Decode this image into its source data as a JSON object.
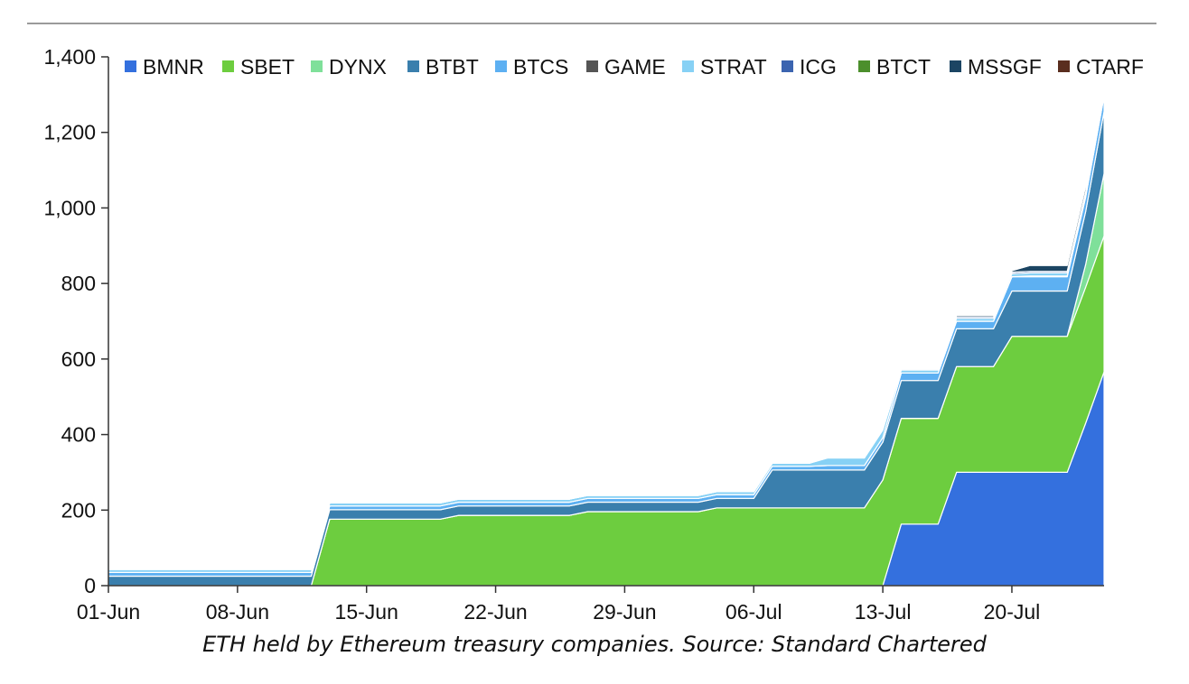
{
  "caption": "ETH held by Ethereum treasury companies. Source: Standard Chartered",
  "chart_data": {
    "type": "area",
    "stacked": true,
    "title": "",
    "xlabel": "",
    "ylabel": "",
    "ylim": [
      0,
      1400
    ],
    "yticks": [
      0,
      200,
      400,
      600,
      800,
      1000,
      1200,
      1400
    ],
    "ytick_labels": [
      "0",
      "200",
      "400",
      "600",
      "800",
      "1,000",
      "1,200",
      "1,400"
    ],
    "xlim": [
      "2025-06-01",
      "2025-07-25"
    ],
    "xticks": [
      "2025-06-01",
      "2025-06-08",
      "2025-06-15",
      "2025-06-22",
      "2025-06-29",
      "2025-07-06",
      "2025-07-13",
      "2025-07-20"
    ],
    "xtick_labels": [
      "01-Jun",
      "08-Jun",
      "15-Jun",
      "22-Jun",
      "29-Jun",
      "06-Jul",
      "13-Jul",
      "20-Jul"
    ],
    "grid": false,
    "legend_position": "top",
    "x": [
      "2025-06-01",
      "2025-06-12",
      "2025-06-13",
      "2025-06-19",
      "2025-06-20",
      "2025-06-26",
      "2025-06-27",
      "2025-07-03",
      "2025-07-04",
      "2025-07-06",
      "2025-07-07",
      "2025-07-09",
      "2025-07-10",
      "2025-07-12",
      "2025-07-13",
      "2025-07-14",
      "2025-07-15",
      "2025-07-16",
      "2025-07-17",
      "2025-07-18",
      "2025-07-19",
      "2025-07-20",
      "2025-07-21",
      "2025-07-22",
      "2025-07-23",
      "2025-07-24",
      "2025-07-25"
    ],
    "series": [
      {
        "name": "BMNR",
        "color": "#3470DE",
        "values": [
          0,
          0,
          0,
          0,
          0,
          0,
          0,
          0,
          0,
          0,
          0,
          0,
          0,
          0,
          0,
          163,
          163,
          163,
          300,
          300,
          300,
          300,
          300,
          300,
          300,
          430,
          566
        ]
      },
      {
        "name": "SBET",
        "color": "#6DCD3F",
        "values": [
          0,
          0,
          176,
          176,
          186,
          186,
          196,
          196,
          206,
          206,
          206,
          206,
          206,
          206,
          280,
          280,
          280,
          280,
          280,
          280,
          280,
          360,
          360,
          360,
          360,
          360,
          360
        ]
      },
      {
        "name": "DYNX",
        "color": "#7FE09A",
        "values": [
          0,
          0,
          0,
          0,
          0,
          0,
          0,
          0,
          0,
          0,
          0,
          0,
          0,
          0,
          0,
          0,
          0,
          0,
          0,
          0,
          0,
          0,
          0,
          0,
          0,
          60,
          165
        ]
      },
      {
        "name": "BTBT",
        "color": "#3A7FAD",
        "values": [
          25,
          25,
          25,
          25,
          25,
          25,
          25,
          25,
          25,
          25,
          100,
          100,
          100,
          100,
          100,
          100,
          100,
          100,
          100,
          100,
          100,
          120,
          120,
          120,
          120,
          140,
          165
        ]
      },
      {
        "name": "BTCS",
        "color": "#5DB0F2",
        "values": [
          10,
          10,
          10,
          10,
          10,
          10,
          10,
          10,
          10,
          10,
          10,
          10,
          12,
          12,
          12,
          20,
          20,
          20,
          20,
          20,
          20,
          38,
          38,
          38,
          38,
          38,
          40
        ]
      },
      {
        "name": "GAME",
        "color": "#555555",
        "values": [
          0,
          0,
          0,
          0,
          0,
          0,
          0,
          0,
          0,
          0,
          0,
          0,
          0,
          0,
          0,
          0,
          0,
          0,
          0,
          0,
          0,
          0,
          2,
          2,
          2,
          2,
          2
        ]
      },
      {
        "name": "STRAT",
        "color": "#87D1F5",
        "values": [
          8,
          8,
          8,
          8,
          8,
          8,
          8,
          8,
          8,
          8,
          8,
          8,
          20,
          20,
          20,
          8,
          8,
          8,
          8,
          8,
          8,
          8,
          8,
          8,
          8,
          8,
          10
        ]
      },
      {
        "name": "ICG",
        "color": "#3B64B0",
        "values": [
          0,
          0,
          0,
          0,
          0,
          0,
          0,
          0,
          0,
          0,
          0,
          0,
          2,
          2,
          2,
          3,
          3,
          3,
          4,
          4,
          4,
          4,
          4,
          4,
          4,
          4,
          4
        ]
      },
      {
        "name": "BTCT",
        "color": "#4C8F2C",
        "values": [
          0,
          0,
          0,
          0,
          0,
          0,
          0,
          0,
          0,
          0,
          0,
          0,
          0,
          0,
          0,
          0,
          0,
          0,
          0,
          0,
          0,
          0,
          0,
          0,
          0,
          0,
          0
        ]
      },
      {
        "name": "MSSGF",
        "color": "#1C4563",
        "values": [
          0,
          0,
          0,
          0,
          0,
          0,
          0,
          0,
          0,
          0,
          0,
          0,
          0,
          0,
          0,
          0,
          0,
          0,
          4,
          4,
          4,
          4,
          16,
          16,
          16,
          16,
          16
        ]
      },
      {
        "name": "CTARF",
        "color": "#5A2E1F",
        "values": [
          0,
          0,
          0,
          0,
          0,
          0,
          0,
          0,
          0,
          0,
          0,
          0,
          0,
          0,
          0,
          0,
          0,
          0,
          0,
          0,
          0,
          0,
          0,
          0,
          0,
          0,
          0
        ]
      }
    ]
  }
}
